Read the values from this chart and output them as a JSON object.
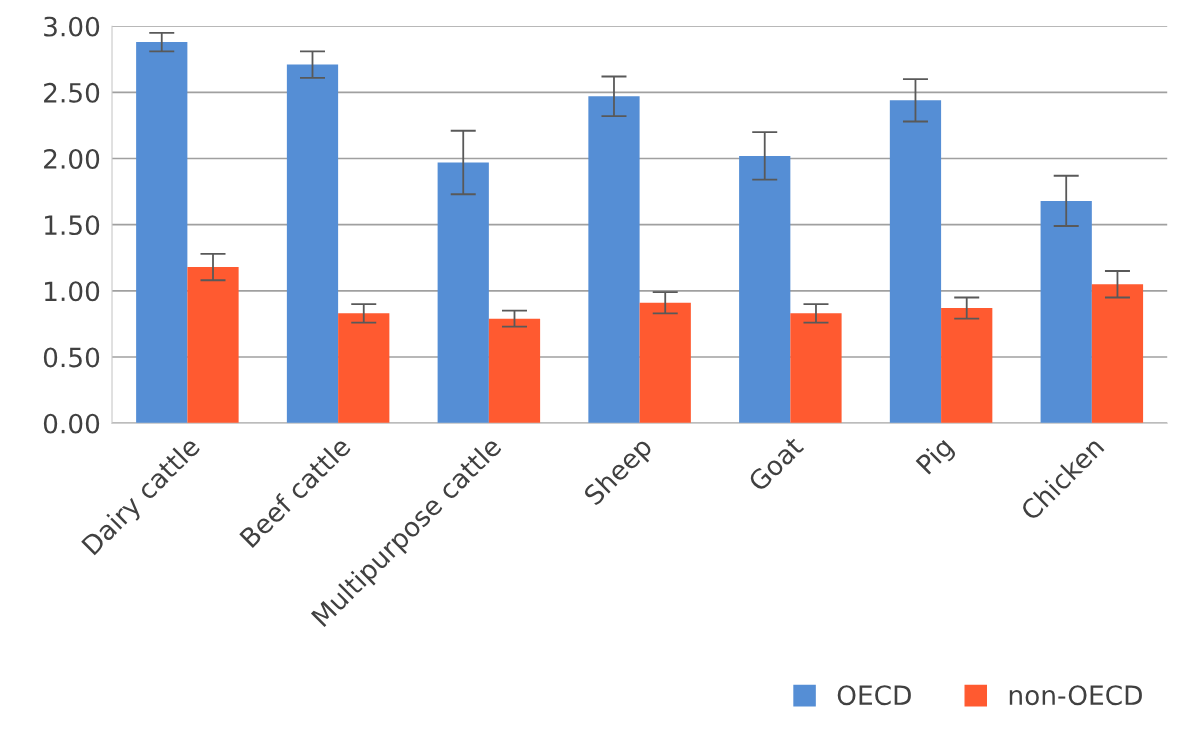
{
  "chart_data": {
    "type": "bar",
    "categories": [
      "Dairy cattle",
      "Beef cattle",
      "Multipurpose cattle",
      "Sheep",
      "Goat",
      "Pig",
      "Chicken"
    ],
    "series": [
      {
        "name": "OECD",
        "color": "#558ed5",
        "values": [
          2.88,
          2.71,
          1.97,
          2.47,
          2.02,
          2.44,
          1.68
        ],
        "errors": [
          0.07,
          0.1,
          0.24,
          0.15,
          0.18,
          0.16,
          0.19
        ]
      },
      {
        "name": "non-OECD",
        "color": "#ff5a30",
        "values": [
          1.18,
          0.83,
          0.79,
          0.91,
          0.83,
          0.87,
          1.05
        ],
        "errors": [
          0.1,
          0.07,
          0.06,
          0.08,
          0.07,
          0.08,
          0.1
        ]
      }
    ],
    "ylim": [
      0,
      3
    ],
    "yticks": [
      {
        "value": 0,
        "label": "0.00"
      },
      {
        "value": 0.5,
        "label": "0.50"
      },
      {
        "value": 1,
        "label": "1.00"
      },
      {
        "value": 1.5,
        "label": "1.50"
      },
      {
        "value": 2,
        "label": "2.00"
      },
      {
        "value": 2.5,
        "label": "2.50"
      },
      {
        "value": 3,
        "label": "3.00"
      }
    ],
    "grid": "y",
    "legend": "bottom right"
  }
}
